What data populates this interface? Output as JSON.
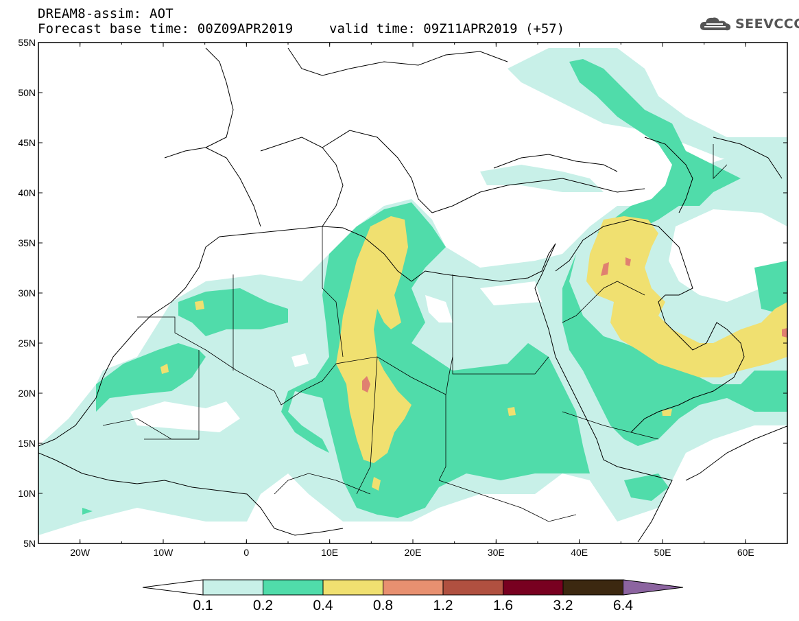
{
  "header": {
    "title": "DREAM8-assim: AOT",
    "base_time": "Forecast base time: 00Z09APR2019",
    "valid_time": "valid time: 09Z11APR2019 (+57)"
  },
  "logo": {
    "text": "SEEVCCC",
    "icon": "cloud-icon"
  },
  "map": {
    "lat_labels": [
      "55N",
      "50N",
      "45N",
      "40N",
      "35N",
      "30N",
      "25N",
      "20N",
      "15N",
      "10N",
      "5N"
    ],
    "lon_labels": [
      "20W",
      "10W",
      "0",
      "10E",
      "20E",
      "30E",
      "40E",
      "50E",
      "60E"
    ],
    "lat_range": [
      5,
      55
    ],
    "lon_range": [
      -25,
      65
    ]
  },
  "colorbar": {
    "labels": [
      "0.1",
      "0.2",
      "0.4",
      "0.8",
      "1.2",
      "1.6",
      "3.2",
      "6.4"
    ],
    "colors": [
      "#ffffff",
      "#c8f0e8",
      "#50dcaa",
      "#f0e070",
      "#e89070",
      "#b05040",
      "#780020",
      "#3c2810",
      "#8c64a0"
    ]
  },
  "colors": {
    "low": "#c8f0e8",
    "mid": "#50dcaa",
    "high": "#f0e070",
    "peak": "#e08070"
  }
}
